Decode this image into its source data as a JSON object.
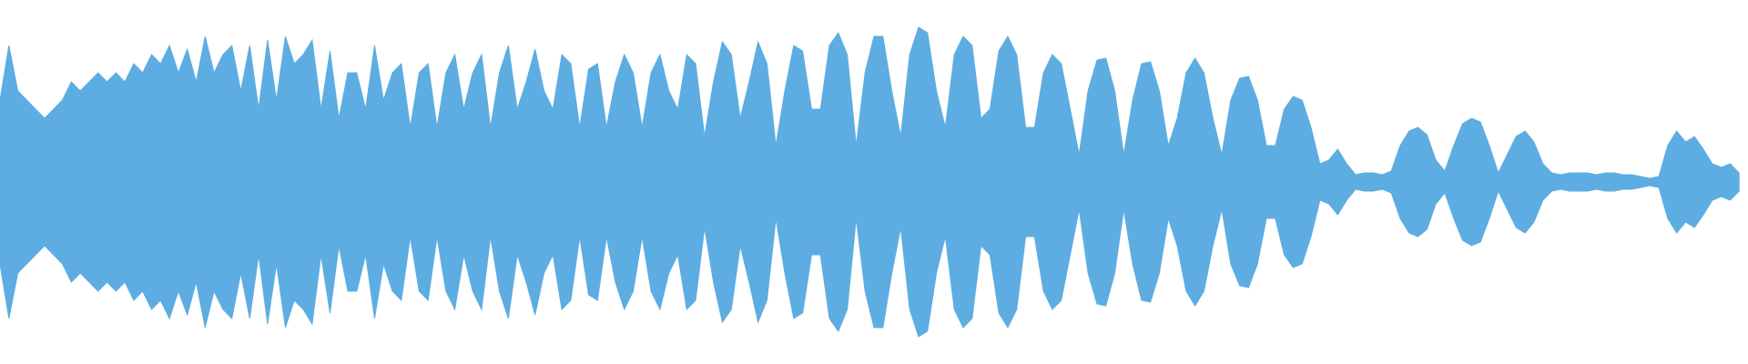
{
  "chart_data": {
    "type": "waveform",
    "color": "#5dade2",
    "ylim": [
      -1,
      1
    ],
    "values": [
      0.45,
      0.75,
      0.5,
      0.45,
      0.4,
      0.35,
      0.4,
      0.45,
      0.55,
      0.5,
      0.55,
      0.6,
      0.55,
      0.6,
      0.55,
      0.65,
      0.6,
      0.7,
      0.65,
      0.75,
      0.6,
      0.73,
      0.55,
      0.8,
      0.6,
      0.7,
      0.75,
      0.5,
      0.75,
      0.4,
      0.78,
      0.45,
      0.8,
      0.65,
      0.7,
      0.78,
      0.4,
      0.72,
      0.35,
      0.6,
      0.6,
      0.4,
      0.75,
      0.45,
      0.6,
      0.65,
      0.3,
      0.6,
      0.65,
      0.3,
      0.6,
      0.7,
      0.4,
      0.6,
      0.7,
      0.3,
      0.6,
      0.75,
      0.4,
      0.55,
      0.73,
      0.5,
      0.4,
      0.7,
      0.65,
      0.3,
      0.62,
      0.65,
      0.3,
      0.55,
      0.7,
      0.6,
      0.3,
      0.6,
      0.7,
      0.5,
      0.4,
      0.7,
      0.65,
      0.25,
      0.55,
      0.77,
      0.7,
      0.35,
      0.55,
      0.77,
      0.65,
      0.2,
      0.5,
      0.75,
      0.72,
      0.4,
      0.4,
      0.75,
      0.82,
      0.7,
      0.2,
      0.6,
      0.8,
      0.8,
      0.5,
      0.25,
      0.7,
      0.85,
      0.82,
      0.5,
      0.3,
      0.7,
      0.8,
      0.75,
      0.35,
      0.4,
      0.72,
      0.8,
      0.7,
      0.3,
      0.3,
      0.6,
      0.7,
      0.65,
      0.4,
      0.15,
      0.5,
      0.67,
      0.68,
      0.5,
      0.15,
      0.45,
      0.65,
      0.66,
      0.5,
      0.2,
      0.35,
      0.6,
      0.68,
      0.6,
      0.35,
      0.15,
      0.45,
      0.57,
      0.58,
      0.45,
      0.2,
      0.2,
      0.4,
      0.47,
      0.45,
      0.3,
      0.1,
      0.12,
      0.18,
      0.1,
      0.04,
      0.05,
      0.05,
      0.04,
      0.06,
      0.2,
      0.28,
      0.3,
      0.26,
      0.12,
      0.06,
      0.2,
      0.32,
      0.35,
      0.33,
      0.2,
      0.05,
      0.15,
      0.25,
      0.28,
      0.22,
      0.1,
      0.05,
      0.04,
      0.05,
      0.05,
      0.05,
      0.04,
      0.05,
      0.05,
      0.04,
      0.04,
      0.03,
      0.02,
      0.03,
      0.2,
      0.28,
      0.22,
      0.25,
      0.18,
      0.1,
      0.08,
      0.1,
      0.05
    ]
  }
}
